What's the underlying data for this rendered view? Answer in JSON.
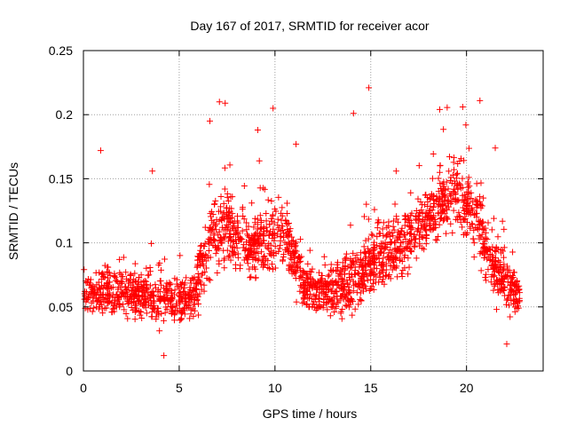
{
  "chart_data": {
    "type": "scatter",
    "title": "Day 167 of 2017, SRMTID for receiver acor",
    "xlabel": "GPS time / hours",
    "ylabel": "SRMTID / TECUs",
    "xlim": [
      0,
      24
    ],
    "ylim": [
      0,
      0.25
    ],
    "grid": true,
    "colors": {
      "series": "#ff0000",
      "axes": "#000000",
      "grid": "#a0a0a0"
    },
    "x_ticks": [
      {
        "value": 0,
        "label": "0"
      },
      {
        "value": 5,
        "label": "5"
      },
      {
        "value": 10,
        "label": "10"
      },
      {
        "value": 15,
        "label": "15"
      },
      {
        "value": 20,
        "label": "20"
      }
    ],
    "y_ticks": [
      {
        "value": 0,
        "label": "0"
      },
      {
        "value": 0.05,
        "label": "0.05"
      },
      {
        "value": 0.1,
        "label": "0.1"
      },
      {
        "value": 0.15,
        "label": "0.15"
      },
      {
        "value": 0.2,
        "label": "0.2"
      },
      {
        "value": 0.25,
        "label": "0.25"
      }
    ],
    "series": [
      {
        "name": "SRMTID",
        "marker": "plus",
        "trend": {
          "x": [
            0,
            1,
            2,
            3,
            4,
            5,
            5.8,
            6.5,
            7.5,
            8.5,
            9.5,
            10.5,
            11.5,
            12.5,
            13.5,
            14.5,
            15.5,
            16.5,
            17.5,
            18.5,
            19.5,
            20.5,
            21.5,
            22.8
          ],
          "y_center": [
            0.065,
            0.06,
            0.062,
            0.06,
            0.055,
            0.055,
            0.06,
            0.1,
            0.115,
            0.095,
            0.1,
            0.11,
            0.065,
            0.062,
            0.065,
            0.075,
            0.09,
            0.095,
            0.11,
            0.13,
            0.14,
            0.12,
            0.08,
            0.055
          ],
          "y_spread": [
            0.035,
            0.03,
            0.03,
            0.03,
            0.03,
            0.03,
            0.03,
            0.05,
            0.05,
            0.04,
            0.045,
            0.045,
            0.03,
            0.03,
            0.035,
            0.045,
            0.04,
            0.04,
            0.04,
            0.04,
            0.045,
            0.045,
            0.04,
            0.025
          ]
        },
        "notable_points": [
          {
            "x": 0.9,
            "y": 0.172
          },
          {
            "x": 3.6,
            "y": 0.156
          },
          {
            "x": 6.6,
            "y": 0.195
          },
          {
            "x": 7.1,
            "y": 0.21
          },
          {
            "x": 7.4,
            "y": 0.209
          },
          {
            "x": 9.1,
            "y": 0.188
          },
          {
            "x": 9.9,
            "y": 0.205
          },
          {
            "x": 11.1,
            "y": 0.177
          },
          {
            "x": 14.1,
            "y": 0.201
          },
          {
            "x": 14.9,
            "y": 0.221
          },
          {
            "x": 18.6,
            "y": 0.204
          },
          {
            "x": 19.8,
            "y": 0.206
          },
          {
            "x": 20.7,
            "y": 0.211
          },
          {
            "x": 21.5,
            "y": 0.174
          },
          {
            "x": 4.2,
            "y": 0.012
          },
          {
            "x": 22.1,
            "y": 0.021
          }
        ],
        "approx_point_count": 2200
      }
    ]
  }
}
